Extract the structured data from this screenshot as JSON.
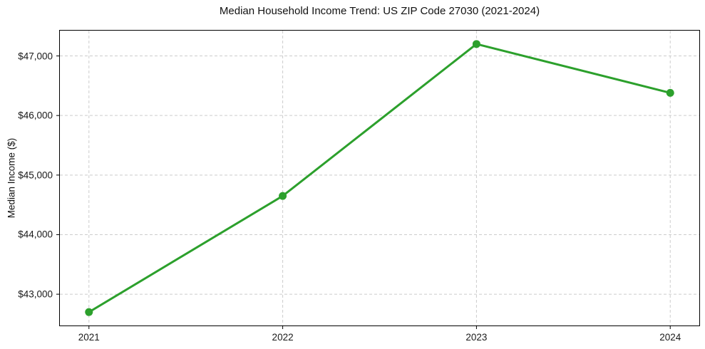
{
  "chart_data": {
    "type": "line",
    "title": "Median Household Income Trend: US ZIP Code 27030 (2021-2024)",
    "xlabel": "",
    "ylabel": "Median Income ($)",
    "x": [
      2021,
      2022,
      2023,
      2024
    ],
    "series": [
      {
        "name": "Median Household Income",
        "values": [
          42700,
          44650,
          47200,
          46380
        ],
        "color": "#2ca02c"
      }
    ],
    "xticks": {
      "values": [
        2021,
        2022,
        2023,
        2024
      ],
      "labels": [
        "2021",
        "2022",
        "2023",
        "2024"
      ]
    },
    "yticks": {
      "values": [
        43000,
        44000,
        45000,
        46000,
        47000
      ],
      "labels": [
        "$43,000",
        "$44,000",
        "$45,000",
        "$46,000",
        "$47,000"
      ]
    },
    "xlim": [
      2020.85,
      2024.15
    ],
    "ylim": [
      42475,
      47425
    ],
    "grid": true,
    "grid_style": "dashed",
    "legend": "none",
    "marker": "circle",
    "marker_size": 11,
    "line_width": 3,
    "tick_length": 5,
    "colors": {
      "background": "#ffffff",
      "grid": "#cccccc",
      "spine": "#000000",
      "text": "#1a1a1a",
      "line": "#2ca02c"
    }
  }
}
